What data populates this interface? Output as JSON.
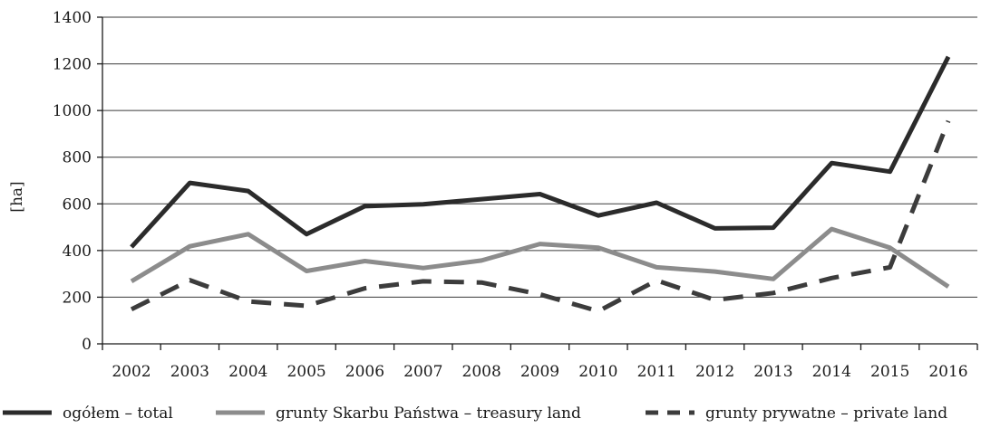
{
  "chart_data": {
    "type": "line",
    "title": "",
    "xlabel": "",
    "ylabel": "[ha]",
    "ylim": [
      0,
      1400
    ],
    "yticks": [
      0,
      200,
      400,
      600,
      800,
      1000,
      1200,
      1400
    ],
    "y_tick_labels": [
      "0",
      "200",
      "400",
      "600",
      "800",
      "1000",
      "1200",
      "1400"
    ],
    "grid": true,
    "legend_position": "bottom",
    "categories": [
      "2002",
      "2003",
      "2004",
      "2005",
      "2006",
      "2007",
      "2008",
      "2009",
      "2010",
      "2011",
      "2012",
      "2013",
      "2014",
      "2015",
      "2016"
    ],
    "series": [
      {
        "name": "ogółem – total",
        "color": "#2b2b2b",
        "dash": "solid",
        "values": [
          415,
          690,
          655,
          470,
          590,
          598,
          620,
          642,
          550,
          605,
          495,
          498,
          775,
          738,
          1230
        ]
      },
      {
        "name": "grunty Skarbu Państwa – treasury land",
        "color": "#8c8c8c",
        "dash": "solid",
        "values": [
          268,
          418,
          470,
          312,
          355,
          325,
          357,
          428,
          412,
          328,
          310,
          278,
          492,
          412,
          245
        ]
      },
      {
        "name": "grunty prywatne – private land",
        "color": "#3c3c3c",
        "dash": "dashed",
        "values": [
          148,
          273,
          182,
          163,
          238,
          268,
          263,
          212,
          140,
          272,
          188,
          218,
          282,
          328,
          955
        ]
      }
    ]
  }
}
